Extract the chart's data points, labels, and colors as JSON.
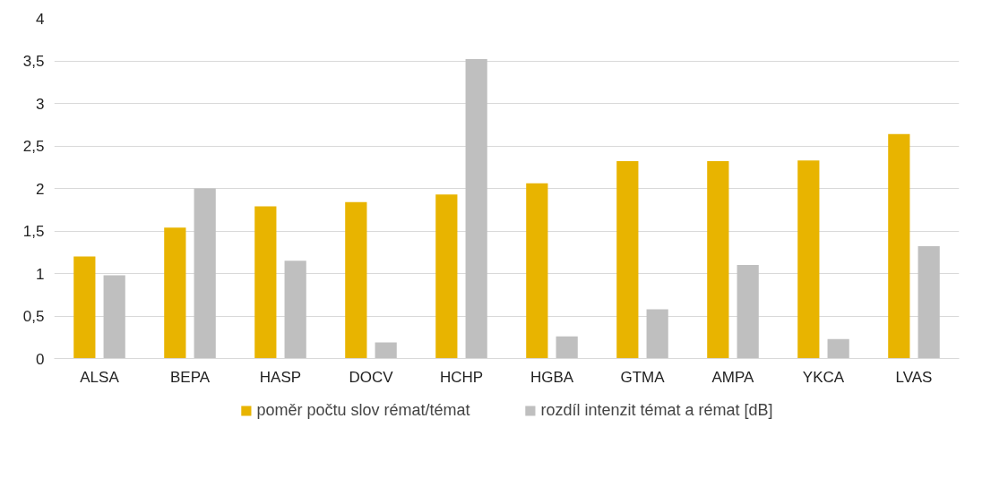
{
  "chart_data": {
    "type": "bar",
    "categories": [
      "ALSA",
      "BEPA",
      "HASP",
      "DOCV",
      "HCHP",
      "HGBA",
      "GTMA",
      "AMPA",
      "YKCA",
      "LVAS"
    ],
    "series": [
      {
        "name": "poměr počtu slov rémat/témat",
        "color": "#e8b400",
        "values": [
          1.2,
          1.54,
          1.79,
          1.84,
          1.93,
          2.06,
          2.32,
          2.32,
          2.33,
          2.64
        ]
      },
      {
        "name": "rozdíl intenzit témat a rémat [dB]",
        "color": "#bfbfbf",
        "values": [
          0.98,
          2.0,
          1.15,
          0.19,
          3.52,
          0.26,
          0.58,
          1.1,
          0.23,
          1.32
        ]
      }
    ],
    "ylim": [
      0,
      4
    ],
    "yticks": [
      0,
      {
        "value": 0.5,
        "label": "0,5"
      },
      1,
      {
        "value": 1.5,
        "label": "1,5"
      },
      2,
      {
        "value": 2.5,
        "label": "2,5"
      },
      3,
      {
        "value": 3.5,
        "label": "3,5"
      },
      4
    ],
    "grid": "y",
    "legend": "bottom"
  }
}
